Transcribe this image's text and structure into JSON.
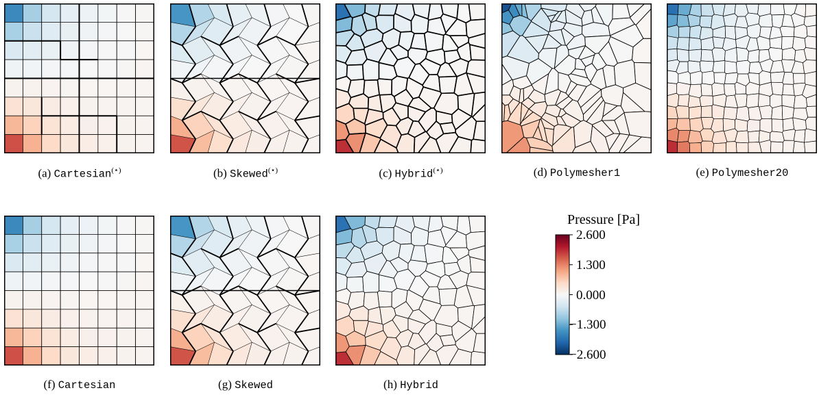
{
  "panels": [
    {
      "id": "a",
      "prefix": "(a) ",
      "name": "Cartesian",
      "sup": "(⋆)",
      "mesh": "cartesian",
      "bold": true
    },
    {
      "id": "b",
      "prefix": "(b) ",
      "name": "Skewed",
      "sup": "(⋆)",
      "mesh": "skewed",
      "bold": true
    },
    {
      "id": "c",
      "prefix": "(c) ",
      "name": "Hybrid",
      "sup": "(⋆)",
      "mesh": "hybrid",
      "bold": true
    },
    {
      "id": "d",
      "prefix": "(d) ",
      "name": "Polymesher1",
      "sup": "",
      "mesh": "voronoi-coarse",
      "bold": false
    },
    {
      "id": "e",
      "prefix": "(e) ",
      "name": "Polymesher20",
      "sup": "",
      "mesh": "voronoi-fine",
      "bold": false
    },
    {
      "id": "f",
      "prefix": "(f) ",
      "name": "Cartesian",
      "sup": "",
      "mesh": "cartesian",
      "bold": false
    },
    {
      "id": "g",
      "prefix": "(g) ",
      "name": "Skewed",
      "sup": "",
      "mesh": "skewed",
      "bold": true
    },
    {
      "id": "h",
      "prefix": "(h) ",
      "name": "Hybrid",
      "sup": "",
      "mesh": "hybrid",
      "bold": false
    }
  ],
  "colorbar": {
    "title": "Pressure [Pa]",
    "ticks": [
      "2.600",
      "1.300",
      "0.000",
      "−1.300",
      "−2.600"
    ],
    "min": -2.6,
    "max": 2.6,
    "colormap": "RdBu_r",
    "colors": [
      "#053061",
      "#2166ac",
      "#4393c3",
      "#92c5de",
      "#d1e5f0",
      "#f7f7f7",
      "#fddbc7",
      "#f4a582",
      "#d6604d",
      "#b2182b",
      "#67001f"
    ]
  }
}
